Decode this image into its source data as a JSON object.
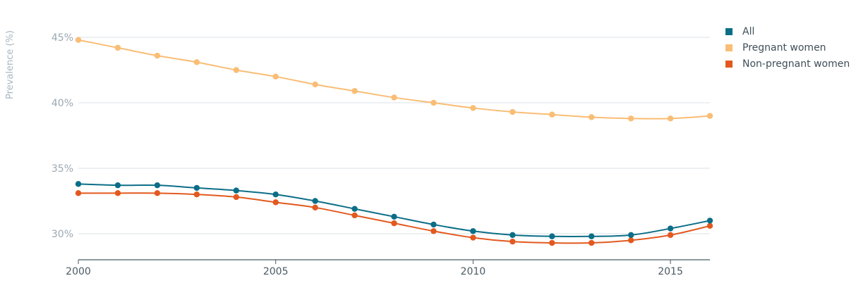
{
  "chart_data": {
    "type": "line",
    "title": "",
    "xlabel": "",
    "ylabel": "Prevalence (%)",
    "ylim": [
      28,
      47
    ],
    "xlim": [
      2000,
      2016
    ],
    "grid": true,
    "legend_position": "top-right",
    "x": [
      2000,
      2001,
      2002,
      2003,
      2004,
      2005,
      2006,
      2007,
      2008,
      2009,
      2010,
      2011,
      2012,
      2013,
      2014,
      2015,
      2016
    ],
    "x_ticks": [
      2000,
      2005,
      2010,
      2015
    ],
    "x_tick_labels": [
      "2000",
      "2005",
      "2010",
      "2015"
    ],
    "y_ticks": [
      30,
      35,
      40,
      45
    ],
    "y_tick_labels": [
      "30%",
      "35%",
      "40%",
      "45%"
    ],
    "series": [
      {
        "name": "All",
        "color": "#0b6e87",
        "values": [
          33.8,
          33.7,
          33.7,
          33.5,
          33.3,
          33.0,
          32.5,
          31.9,
          31.3,
          30.7,
          30.2,
          29.9,
          29.8,
          29.8,
          29.9,
          30.4,
          31.0
        ]
      },
      {
        "name": "Pregnant women",
        "color": "#f9bd75",
        "values": [
          44.8,
          44.2,
          43.6,
          43.1,
          42.5,
          42.0,
          41.4,
          40.9,
          40.4,
          40.0,
          39.6,
          39.3,
          39.1,
          38.9,
          38.8,
          38.8,
          39.0
        ]
      },
      {
        "name": "Non-pregnant women",
        "color": "#e2591f",
        "values": [
          33.1,
          33.1,
          33.1,
          33.0,
          32.8,
          32.4,
          32.0,
          31.4,
          30.8,
          30.2,
          29.7,
          29.4,
          29.3,
          29.3,
          29.5,
          29.9,
          30.6
        ]
      }
    ]
  },
  "colors": {
    "grid": "#d9e1e5",
    "axis": "#4a5a63",
    "y_tick_text": "#9aa8b2",
    "x_tick_text": "#4a5a63"
  }
}
